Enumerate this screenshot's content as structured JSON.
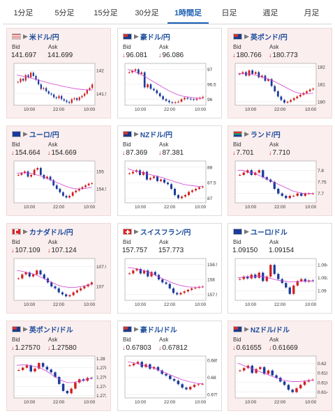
{
  "tabs": [
    {
      "label": "1分足",
      "active": false
    },
    {
      "label": "5分足",
      "active": false
    },
    {
      "label": "15分足",
      "active": false
    },
    {
      "label": "30分足",
      "active": false
    },
    {
      "label": "1時間足",
      "active": true
    },
    {
      "label": "日足",
      "active": false
    },
    {
      "label": "週足",
      "active": false
    },
    {
      "label": "月足",
      "active": false
    }
  ],
  "bid_label": "Bid",
  "ask_label": "Ask",
  "pairs": [
    {
      "name": "米ドル/円",
      "flag": "us",
      "bid": "141.697",
      "ask": "141.699",
      "bid_down": false,
      "ask_down": false,
      "pink": true,
      "ymin": 141.25,
      "ymax": 142.15,
      "yticks": [
        "142",
        "141.5"
      ],
      "ytick_vals": [
        142,
        141.5
      ],
      "xticks": [
        "10:00",
        "22:00",
        "10:00"
      ],
      "series": [
        141.75,
        141.82,
        141.78,
        141.9,
        141.85,
        141.95,
        141.88,
        141.8,
        141.7,
        141.6,
        141.62,
        141.55,
        141.5,
        141.48,
        141.42,
        141.4,
        141.45,
        141.38,
        141.35,
        141.32,
        141.3,
        141.38,
        141.4,
        141.36,
        141.42,
        141.45,
        141.5,
        141.58,
        141.62,
        141.7
      ],
      "ma": [
        141.9,
        141.88,
        141.86,
        141.83,
        141.8,
        141.77,
        141.74,
        141.71,
        141.69,
        141.66,
        141.64,
        141.62,
        141.6,
        141.59,
        141.58,
        141.58
      ]
    },
    {
      "name": "豪ドル/円",
      "flag": "au",
      "bid": "96.081",
      "ask": "96.086",
      "bid_down": true,
      "ask_down": true,
      "pink": false,
      "ymin": 95.8,
      "ymax": 97.2,
      "yticks": [
        "97",
        "96.5",
        "96"
      ],
      "ytick_vals": [
        97,
        96.5,
        96
      ],
      "xticks": [
        "10:00",
        "22:00",
        "10:00"
      ],
      "series": [
        96.9,
        96.95,
        97.0,
        96.85,
        96.9,
        96.4,
        96.5,
        96.35,
        96.3,
        96.2,
        96.1,
        96.0,
        95.95,
        95.9,
        95.88,
        95.9,
        95.92,
        96.0,
        96.05,
        96.02,
        96.0,
        95.98,
        96.02,
        96.05,
        96.08
      ],
      "ma": [
        97.0,
        96.95,
        96.88,
        96.8,
        96.7,
        96.6,
        96.5,
        96.4,
        96.3,
        96.22,
        96.15,
        96.1,
        96.08,
        96.05,
        96.04,
        96.03
      ]
    },
    {
      "name": "英ポンド/円",
      "flag": "gb",
      "bid": "180.766",
      "ask": "180.773",
      "bid_down": true,
      "ask_down": true,
      "pink": true,
      "ymin": 179.8,
      "ymax": 182.2,
      "yticks": [
        "182",
        "181",
        "180"
      ],
      "ytick_vals": [
        182,
        181,
        180
      ],
      "xticks": [
        "10:00",
        "22:00",
        "10:00"
      ],
      "series": [
        181.6,
        181.7,
        181.5,
        181.8,
        181.6,
        181.7,
        181.4,
        181.5,
        181.2,
        181.3,
        180.9,
        180.6,
        180.3,
        180.1,
        179.95,
        180.0,
        180.1,
        180.2,
        180.3,
        180.4,
        180.5,
        180.6,
        180.7,
        180.75
      ],
      "ma": [
        181.6,
        181.62,
        181.6,
        181.55,
        181.5,
        181.4,
        181.3,
        181.2,
        181.05,
        180.9,
        180.75,
        180.6,
        180.5,
        180.45,
        180.45,
        180.5
      ]
    },
    {
      "name": "ユーロ/円",
      "flag": "eu",
      "bid": "154.664",
      "ask": "154.669",
      "bid_down": true,
      "ask_down": true,
      "pink": true,
      "ymin": 154.1,
      "ymax": 155.3,
      "yticks": [
        "155",
        "154.5"
      ],
      "ytick_vals": [
        155,
        154.5
      ],
      "xticks": [
        "10:00",
        "22:00",
        "10:00"
      ],
      "series": [
        154.9,
        154.95,
        155.0,
        154.85,
        154.9,
        155.05,
        155.1,
        154.9,
        154.8,
        154.85,
        154.75,
        154.6,
        154.5,
        154.4,
        154.3,
        154.25,
        154.3,
        154.4,
        154.45,
        154.5,
        154.55,
        154.6,
        154.65,
        154.66
      ],
      "ma": [
        154.95,
        154.96,
        154.96,
        154.94,
        154.9,
        154.86,
        154.8,
        154.74,
        154.68,
        154.62,
        154.56,
        154.52,
        154.5,
        154.5,
        154.52,
        154.55
      ]
    },
    {
      "name": "NZドル/円",
      "flag": "nz",
      "bid": "87.369",
      "ask": "87.381",
      "bid_down": true,
      "ask_down": true,
      "pink": false,
      "ymin": 86.85,
      "ymax": 88.2,
      "yticks": [
        "88",
        "87.5",
        "87"
      ],
      "ytick_vals": [
        88,
        87.5,
        87
      ],
      "xticks": [
        "10:00",
        "22:00",
        "10:00"
      ],
      "series": [
        87.8,
        87.85,
        87.9,
        87.75,
        87.85,
        87.6,
        87.65,
        87.7,
        87.55,
        87.6,
        87.5,
        87.45,
        87.3,
        87.1,
        87.0,
        87.05,
        87.1,
        87.2,
        87.25,
        87.3,
        87.35,
        87.37
      ],
      "ma": [
        87.95,
        87.9,
        87.86,
        87.82,
        87.78,
        87.74,
        87.7,
        87.66,
        87.6,
        87.55,
        87.5,
        87.45,
        87.42,
        87.4,
        87.38,
        87.37
      ]
    },
    {
      "name": "ランド/円",
      "flag": "za",
      "bid": "7.701",
      "ask": "7.710",
      "bid_down": true,
      "ask_down": true,
      "pink": true,
      "ymin": 7.66,
      "ymax": 7.84,
      "yticks": [
        "7.8",
        "7.75",
        "7.7"
      ],
      "ytick_vals": [
        7.8,
        7.75,
        7.7
      ],
      "xticks": [
        "10:00",
        "22:00",
        "10:00"
      ],
      "series": [
        7.78,
        7.79,
        7.8,
        7.78,
        7.79,
        7.8,
        7.77,
        7.76,
        7.75,
        7.72,
        7.7,
        7.69,
        7.68,
        7.69,
        7.69,
        7.7,
        7.69,
        7.7,
        7.7,
        7.7
      ],
      "ma": [
        7.8,
        7.8,
        7.79,
        7.79,
        7.78,
        7.77,
        7.76,
        7.75,
        7.74,
        7.73,
        7.72,
        7.71,
        7.705,
        7.7,
        7.7,
        7.7
      ]
    },
    {
      "name": "カナダドル/円",
      "flag": "ca",
      "bid": "107.109",
      "ask": "107.124",
      "bid_down": true,
      "ask_down": true,
      "pink": true,
      "ymin": 106.65,
      "ymax": 107.7,
      "yticks": [
        "107.5",
        "107"
      ],
      "ytick_vals": [
        107.5,
        107
      ],
      "xticks": [
        "10:00",
        "22:00",
        "10:00"
      ],
      "series": [
        107.2,
        107.3,
        107.35,
        107.25,
        107.3,
        107.4,
        107.3,
        107.2,
        107.1,
        107.0,
        106.95,
        106.85,
        106.8,
        106.75,
        106.78,
        106.85,
        106.9,
        106.95,
        107.0,
        107.05,
        107.1
      ],
      "ma": [
        107.4,
        107.38,
        107.35,
        107.32,
        107.28,
        107.22,
        107.16,
        107.1,
        107.04,
        107.0,
        106.98,
        106.97,
        106.98,
        107.0,
        107.03,
        107.06
      ]
    },
    {
      "name": "スイスフラン/円",
      "flag": "ch",
      "bid": "157.757",
      "ask": "157.773",
      "bid_down": false,
      "ask_down": false,
      "pink": false,
      "ymin": 157.3,
      "ymax": 158.7,
      "yticks": [
        "158.5",
        "158",
        "157.5"
      ],
      "ytick_vals": [
        158.5,
        158,
        157.5
      ],
      "xticks": [
        "10:00",
        "22:00",
        "10:00"
      ],
      "series": [
        158.2,
        158.3,
        158.35,
        158.2,
        158.3,
        158.1,
        158.25,
        158.15,
        158.0,
        157.9,
        157.85,
        157.7,
        157.55,
        157.5,
        157.55,
        157.6,
        157.65,
        157.7,
        157.72,
        157.75,
        157.76
      ],
      "ma": [
        158.4,
        158.38,
        158.35,
        158.3,
        158.25,
        158.18,
        158.1,
        158.02,
        157.95,
        157.88,
        157.82,
        157.78,
        157.75,
        157.74,
        157.74,
        157.75
      ]
    },
    {
      "name": "ユーロ/ドル",
      "flag": "euus",
      "bid": "1.09150",
      "ask": "1.09154",
      "bid_down": false,
      "ask_down": false,
      "pink": false,
      "ymin": 1.0885,
      "ymax": 1.095,
      "yticks": [
        "1.094",
        "1.092",
        "1.09"
      ],
      "ytick_vals": [
        1.094,
        1.092,
        1.09
      ],
      "xticks": [
        "10:00",
        "22:00",
        "10:00"
      ],
      "series": [
        1.0918,
        1.0922,
        1.0919,
        1.0925,
        1.092,
        1.0928,
        1.0915,
        1.0922,
        1.094,
        1.0926,
        1.0918,
        1.0912,
        1.0905,
        1.0895,
        1.0908,
        1.0915,
        1.0918,
        1.0914,
        1.0916,
        1.0915
      ],
      "ma": [
        1.092,
        1.0921,
        1.0922,
        1.0922,
        1.0923,
        1.0922,
        1.092,
        1.0918,
        1.0916,
        1.0915,
        1.0914,
        1.0914,
        1.0914,
        1.0915,
        1.0915,
        1.0915
      ]
    },
    {
      "name": "英ポンド/ドル",
      "flag": "gbus",
      "bid": "1.27570",
      "ask": "1.27580",
      "bid_down": true,
      "ask_down": true,
      "pink": true,
      "ymin": 1.2715,
      "ymax": 1.2805,
      "yticks": [
        "1.28",
        "1.278",
        "1.276",
        "1.274",
        "1.272"
      ],
      "ytick_vals": [
        1.28,
        1.278,
        1.276,
        1.274,
        1.272
      ],
      "xticks": [
        "10:00",
        "22:00",
        "10:00"
      ],
      "series": [
        1.2775,
        1.278,
        1.2785,
        1.2772,
        1.2778,
        1.279,
        1.2782,
        1.2776,
        1.277,
        1.276,
        1.2745,
        1.273,
        1.2725,
        1.2735,
        1.2748,
        1.2755,
        1.2752,
        1.2758,
        1.2757
      ],
      "ma": [
        1.2785,
        1.2786,
        1.2786,
        1.2784,
        1.2782,
        1.2778,
        1.2772,
        1.2765,
        1.2758,
        1.2752,
        1.2748,
        1.2748,
        1.275,
        1.2752,
        1.2755,
        1.2757
      ]
    },
    {
      "name": "豪ドル/ドル",
      "flag": "auus",
      "bid": "0.67803",
      "ask": "0.67812",
      "bid_down": true,
      "ask_down": true,
      "pink": false,
      "ymin": 0.674,
      "ymax": 0.6862,
      "yticks": [
        "0.685",
        "0.68",
        "0.675"
      ],
      "ytick_vals": [
        0.685,
        0.68,
        0.675
      ],
      "xticks": [
        "10:00",
        "22:00",
        "10:00"
      ],
      "series": [
        0.6835,
        0.684,
        0.6845,
        0.683,
        0.6838,
        0.6825,
        0.683,
        0.682,
        0.681,
        0.6805,
        0.6795,
        0.679,
        0.678,
        0.677,
        0.6765,
        0.6772,
        0.6778,
        0.678,
        0.6781
      ],
      "ma": [
        0.6845,
        0.6843,
        0.684,
        0.6836,
        0.6832,
        0.6828,
        0.6822,
        0.6816,
        0.681,
        0.6804,
        0.6798,
        0.6792,
        0.6788,
        0.6785,
        0.6782,
        0.6781
      ]
    },
    {
      "name": "NZドル/ドル",
      "flag": "nzus",
      "bid": "0.61655",
      "ask": "0.61669",
      "bid_down": true,
      "ask_down": true,
      "pink": true,
      "ymin": 0.6128,
      "ymax": 0.6215,
      "yticks": [
        "0.62",
        "0.618",
        "0.616",
        "0.614"
      ],
      "ytick_vals": [
        0.62,
        0.618,
        0.616,
        0.614
      ],
      "xticks": [
        "10:00",
        "22:00",
        "10:00"
      ],
      "series": [
        0.6185,
        0.619,
        0.6195,
        0.618,
        0.6188,
        0.6192,
        0.6178,
        0.6185,
        0.6175,
        0.617,
        0.6162,
        0.6155,
        0.6145,
        0.614,
        0.6148,
        0.6155,
        0.6162,
        0.6165,
        0.6166
      ],
      "ma": [
        0.62,
        0.6196,
        0.6192,
        0.6188,
        0.6184,
        0.618,
        0.6176,
        0.6172,
        0.6168,
        0.6165,
        0.6163,
        0.6162,
        0.6162,
        0.6163,
        0.6164,
        0.6165
      ]
    }
  ],
  "colors": {
    "accent": "#1a5fb4",
    "up": "#d02020",
    "down": "#1a3a9c",
    "ma": "#d040d0",
    "ma2": "#40b0d0"
  }
}
